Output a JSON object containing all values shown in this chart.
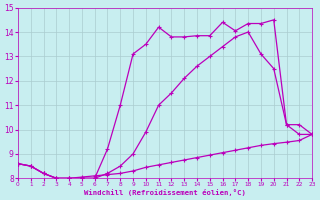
{
  "xlabel": "Windchill (Refroidissement éolien,°C)",
  "xlim": [
    0,
    23
  ],
  "ylim": [
    8,
    15
  ],
  "yticks": [
    8,
    9,
    10,
    11,
    12,
    13,
    14,
    15
  ],
  "xticks": [
    0,
    1,
    2,
    3,
    4,
    5,
    6,
    7,
    8,
    9,
    10,
    11,
    12,
    13,
    14,
    15,
    16,
    17,
    18,
    19,
    20,
    21,
    22,
    23
  ],
  "bg_color": "#c8eef0",
  "grid_color": "#aaccd0",
  "line_color": "#bb00bb",
  "line1_x": [
    0,
    1,
    2,
    3,
    4,
    5,
    6,
    7,
    8,
    9,
    10,
    11,
    12,
    13,
    14,
    15,
    16,
    17,
    18,
    19,
    20,
    21,
    22,
    23
  ],
  "line1_y": [
    8.6,
    8.5,
    8.2,
    8.0,
    8.0,
    8.0,
    8.0,
    9.2,
    11.0,
    13.1,
    13.5,
    14.2,
    13.8,
    13.8,
    13.85,
    13.85,
    14.4,
    14.05,
    14.35,
    14.35,
    14.5,
    10.2,
    9.8,
    9.8
  ],
  "line2_x": [
    0,
    1,
    2,
    3,
    4,
    5,
    6,
    7,
    8,
    9,
    10,
    11,
    12,
    13,
    14,
    15,
    16,
    17,
    18,
    19,
    20,
    21,
    22,
    23
  ],
  "line2_y": [
    8.6,
    8.5,
    8.2,
    8.0,
    8.0,
    8.0,
    8.0,
    8.2,
    8.5,
    9.0,
    9.9,
    11.0,
    11.5,
    12.1,
    12.6,
    13.0,
    13.4,
    13.8,
    14.0,
    13.1,
    12.5,
    10.2,
    10.2,
    9.8
  ],
  "line3_x": [
    0,
    1,
    2,
    3,
    4,
    5,
    6,
    7,
    8,
    9,
    10,
    11,
    12,
    13,
    14,
    15,
    16,
    17,
    18,
    19,
    20,
    21,
    22,
    23
  ],
  "line3_y": [
    8.6,
    8.5,
    8.2,
    8.0,
    8.0,
    8.05,
    8.1,
    8.15,
    8.2,
    8.3,
    8.45,
    8.55,
    8.65,
    8.75,
    8.85,
    8.95,
    9.05,
    9.15,
    9.25,
    9.35,
    9.42,
    9.48,
    9.55,
    9.8
  ]
}
